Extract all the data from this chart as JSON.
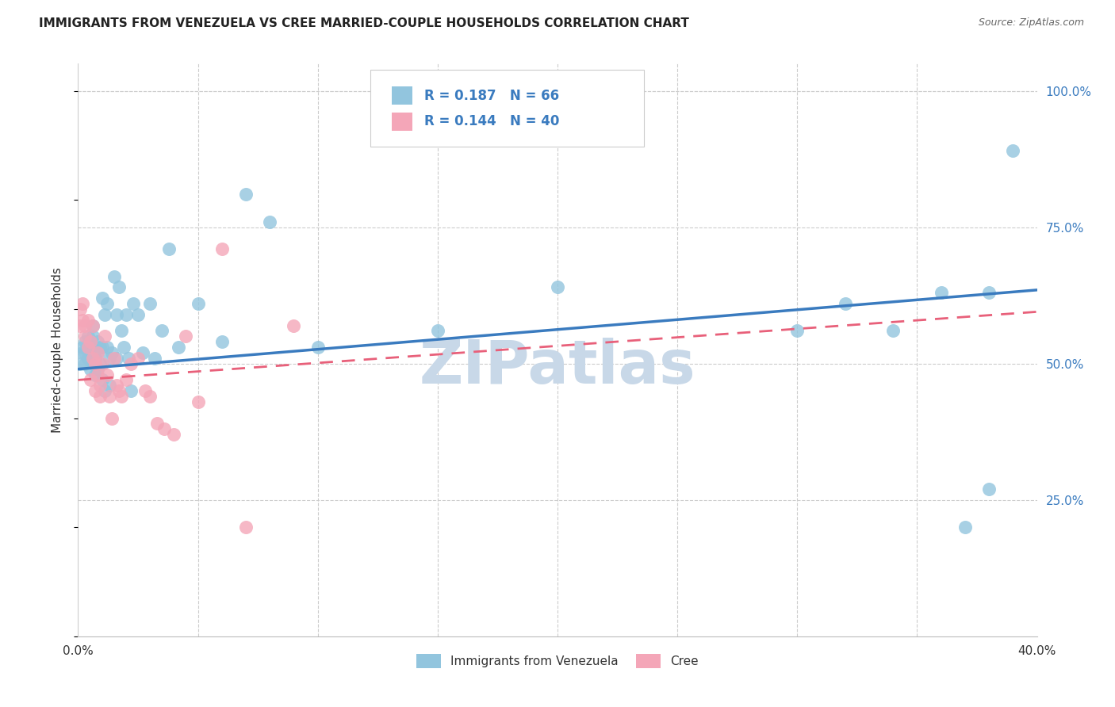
{
  "title": "IMMIGRANTS FROM VENEZUELA VS CREE MARRIED-COUPLE HOUSEHOLDS CORRELATION CHART",
  "source": "Source: ZipAtlas.com",
  "ylabel": "Married-couple Households",
  "R1": 0.187,
  "N1": 66,
  "R2": 0.144,
  "N2": 40,
  "blue_color": "#92c5de",
  "pink_color": "#f4a6b8",
  "blue_line_color": "#3a7bbf",
  "pink_line_color": "#e8607a",
  "watermark": "ZIPatlas",
  "blue_points_x": [
    0.001,
    0.002,
    0.002,
    0.003,
    0.003,
    0.003,
    0.004,
    0.004,
    0.004,
    0.005,
    0.005,
    0.005,
    0.006,
    0.006,
    0.006,
    0.006,
    0.007,
    0.007,
    0.007,
    0.008,
    0.008,
    0.008,
    0.009,
    0.009,
    0.01,
    0.01,
    0.01,
    0.011,
    0.011,
    0.012,
    0.012,
    0.013,
    0.013,
    0.014,
    0.015,
    0.016,
    0.016,
    0.017,
    0.018,
    0.019,
    0.02,
    0.021,
    0.022,
    0.023,
    0.025,
    0.027,
    0.03,
    0.032,
    0.035,
    0.038,
    0.042,
    0.05,
    0.06,
    0.07,
    0.08,
    0.1,
    0.15,
    0.2,
    0.3,
    0.32,
    0.34,
    0.36,
    0.37,
    0.38,
    0.38,
    0.39
  ],
  "blue_points_y": [
    0.5,
    0.53,
    0.52,
    0.5,
    0.52,
    0.54,
    0.51,
    0.53,
    0.55,
    0.49,
    0.52,
    0.54,
    0.5,
    0.52,
    0.55,
    0.57,
    0.48,
    0.51,
    0.53,
    0.49,
    0.52,
    0.54,
    0.5,
    0.53,
    0.62,
    0.47,
    0.53,
    0.59,
    0.45,
    0.61,
    0.53,
    0.51,
    0.46,
    0.52,
    0.66,
    0.59,
    0.51,
    0.64,
    0.56,
    0.53,
    0.59,
    0.51,
    0.45,
    0.61,
    0.59,
    0.52,
    0.61,
    0.51,
    0.56,
    0.71,
    0.53,
    0.61,
    0.54,
    0.81,
    0.76,
    0.53,
    0.56,
    0.64,
    0.56,
    0.61,
    0.56,
    0.63,
    0.2,
    0.27,
    0.63,
    0.89
  ],
  "pink_points_x": [
    0.001,
    0.001,
    0.002,
    0.002,
    0.003,
    0.003,
    0.004,
    0.004,
    0.005,
    0.005,
    0.006,
    0.006,
    0.007,
    0.007,
    0.008,
    0.008,
    0.009,
    0.009,
    0.01,
    0.011,
    0.012,
    0.013,
    0.014,
    0.015,
    0.016,
    0.017,
    0.018,
    0.02,
    0.022,
    0.025,
    0.028,
    0.03,
    0.033,
    0.036,
    0.04,
    0.045,
    0.05,
    0.06,
    0.07,
    0.09
  ],
  "pink_points_y": [
    0.6,
    0.57,
    0.58,
    0.61,
    0.55,
    0.57,
    0.53,
    0.58,
    0.47,
    0.54,
    0.51,
    0.57,
    0.5,
    0.45,
    0.52,
    0.48,
    0.44,
    0.46,
    0.5,
    0.55,
    0.48,
    0.44,
    0.4,
    0.51,
    0.46,
    0.45,
    0.44,
    0.47,
    0.5,
    0.51,
    0.45,
    0.44,
    0.39,
    0.38,
    0.37,
    0.55,
    0.43,
    0.71,
    0.2,
    0.57
  ],
  "xlim": [
    0.0,
    0.4
  ],
  "ylim": [
    0.0,
    1.05
  ],
  "xticks": [
    0.0,
    0.05,
    0.1,
    0.15,
    0.2,
    0.25,
    0.3,
    0.35,
    0.4
  ],
  "xtick_labels": [
    "0.0%",
    "",
    "",
    "",
    "",
    "",
    "",
    "",
    "40.0%"
  ],
  "yticks_right": [
    0.25,
    0.5,
    0.75,
    1.0
  ],
  "ytick_labels_right": [
    "25.0%",
    "50.0%",
    "75.0%",
    "100.0%"
  ],
  "grid_color": "#cccccc",
  "background_color": "#ffffff",
  "title_fontsize": 11,
  "source_fontsize": 9,
  "label_fontsize": 11,
  "tick_fontsize": 11,
  "watermark_color": "#c8d8e8",
  "watermark_fontsize": 55,
  "legend_label1": "Immigrants from Venezuela",
  "legend_label2": "Cree"
}
